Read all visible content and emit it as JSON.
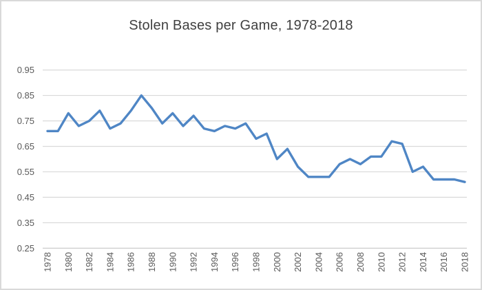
{
  "window": {
    "background": "#ffffff",
    "border_color": "#d9d9d9"
  },
  "chart_data": {
    "type": "line",
    "title": "Stolen Bases per Game, 1978-2018",
    "xlabel": "",
    "ylabel": "",
    "x": [
      1978,
      1979,
      1980,
      1981,
      1982,
      1983,
      1984,
      1985,
      1986,
      1987,
      1988,
      1989,
      1990,
      1991,
      1992,
      1993,
      1994,
      1995,
      1996,
      1997,
      1998,
      1999,
      2000,
      2001,
      2002,
      2003,
      2004,
      2005,
      2006,
      2007,
      2008,
      2009,
      2010,
      2011,
      2012,
      2013,
      2014,
      2015,
      2016,
      2017,
      2018
    ],
    "values": [
      0.71,
      0.71,
      0.78,
      0.73,
      0.75,
      0.79,
      0.72,
      0.74,
      0.79,
      0.85,
      0.8,
      0.74,
      0.78,
      0.73,
      0.77,
      0.72,
      0.71,
      0.73,
      0.72,
      0.74,
      0.68,
      0.7,
      0.6,
      0.64,
      0.57,
      0.53,
      0.53,
      0.53,
      0.58,
      0.6,
      0.58,
      0.61,
      0.61,
      0.67,
      0.66,
      0.55,
      0.57,
      0.52,
      0.52,
      0.52,
      0.51
    ],
    "xlim": [
      1978,
      2018
    ],
    "ylim": [
      0.25,
      0.95
    ],
    "x_tick_labels": [
      "1978",
      "1980",
      "1982",
      "1984",
      "1986",
      "1988",
      "1990",
      "1992",
      "1994",
      "1996",
      "1998",
      "2000",
      "2002",
      "2004",
      "2006",
      "2008",
      "2010",
      "2012",
      "2014",
      "2016",
      "2018"
    ],
    "x_tick_values": [
      1978,
      1980,
      1982,
      1984,
      1986,
      1988,
      1990,
      1992,
      1994,
      1996,
      1998,
      2000,
      2002,
      2004,
      2006,
      2008,
      2010,
      2012,
      2014,
      2016,
      2018
    ],
    "y_tick_labels": [
      "0.25",
      "0.35",
      "0.45",
      "0.55",
      "0.65",
      "0.75",
      "0.85",
      "0.95"
    ],
    "y_tick_values": [
      0.25,
      0.35,
      0.45,
      0.55,
      0.65,
      0.75,
      0.85,
      0.95
    ],
    "grid": "horizontal",
    "legend": "none",
    "markers": "none",
    "line_color": "#4f86c5",
    "line_width": 3.4,
    "gridline_color": "#d9d9d9",
    "axis_line_color": "#c6c6c6",
    "tick_label_color": "#595959",
    "title_color": "#404040"
  }
}
